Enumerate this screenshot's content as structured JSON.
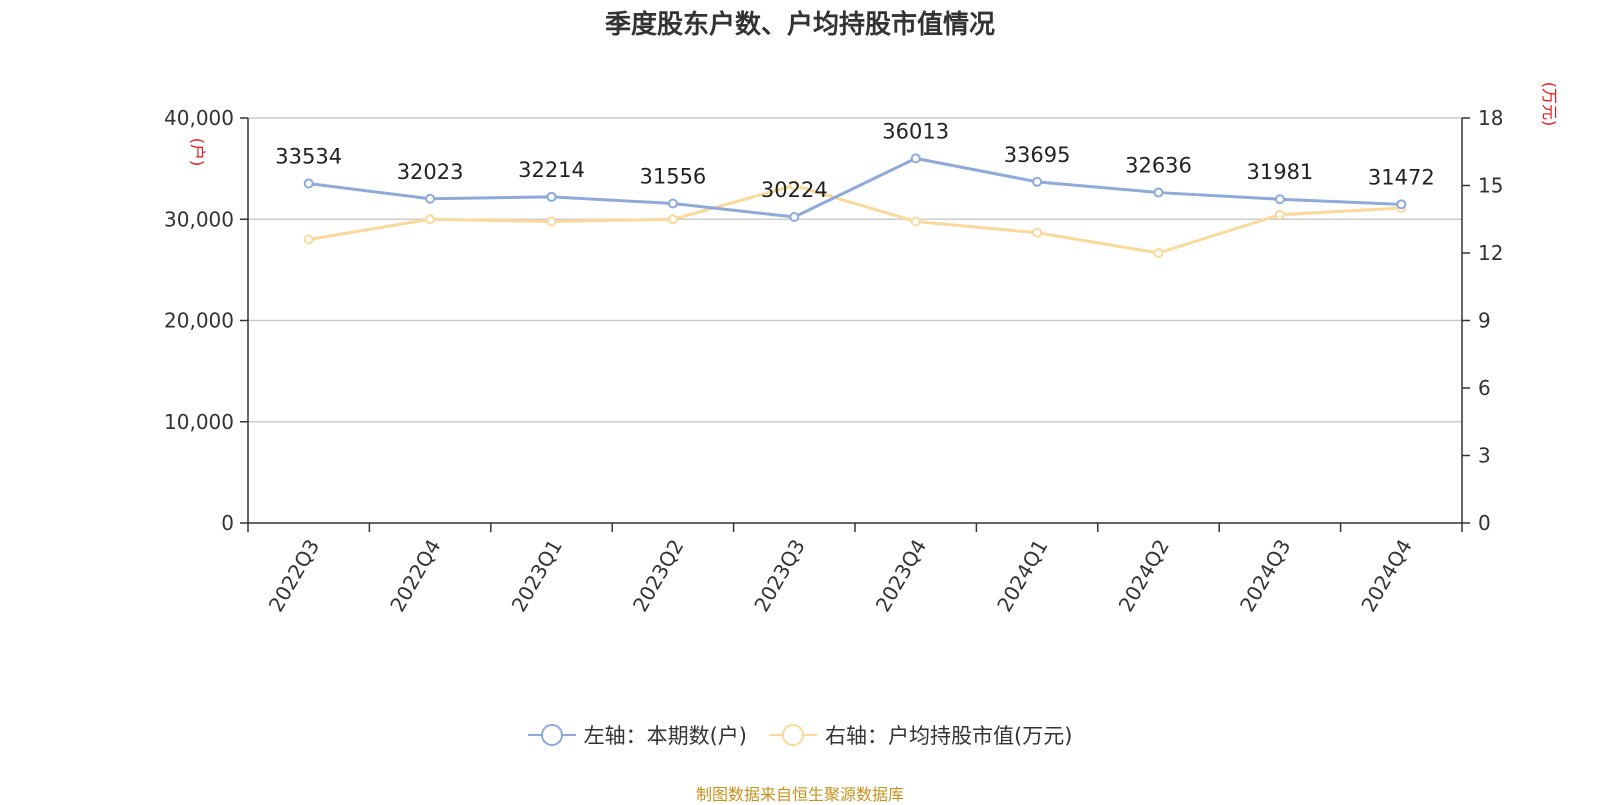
{
  "title": "季度股东户数、户均持股市值情况",
  "source": "制图数据来自恒生聚源数据库",
  "legend": [
    {
      "label": "左轴：本期数(户)",
      "color": "#8eaadb"
    },
    {
      "label": "右轴：户均持股市值(万元)",
      "color": "#fad99b"
    }
  ],
  "chart_data": {
    "type": "line",
    "categories": [
      "2022Q3",
      "2022Q4",
      "2023Q1",
      "2023Q2",
      "2023Q3",
      "2023Q4",
      "2024Q1",
      "2024Q2",
      "2024Q3",
      "2024Q4"
    ],
    "series": [
      {
        "name": "左轴：本期数(户)",
        "axis": "left",
        "color": "#8eaadb",
        "values": [
          33534,
          32023,
          32214,
          31556,
          30224,
          36013,
          33695,
          32636,
          31981,
          31472
        ],
        "show_labels": true
      },
      {
        "name": "右轴：户均持股市值(万元)",
        "axis": "right",
        "color": "#fad99b",
        "values": [
          12.6,
          13.5,
          13.4,
          13.5,
          15.0,
          13.4,
          12.9,
          12.0,
          13.7,
          14.0
        ],
        "show_labels": false
      }
    ],
    "y_left": {
      "unit": "(户)",
      "min": 0,
      "max": 40000,
      "ticks": [
        0,
        10000,
        20000,
        30000,
        40000
      ],
      "tick_labels": [
        "0",
        "10,000",
        "20,000",
        "30,000",
        "40,000"
      ]
    },
    "y_right": {
      "unit": "(万元)",
      "min": 0,
      "max": 18,
      "ticks": [
        0,
        3,
        6,
        9,
        12,
        15,
        18
      ],
      "tick_labels": [
        "0",
        "3",
        "6",
        "9",
        "12",
        "15",
        "18"
      ]
    },
    "grid": true,
    "legend_position": "bottom"
  }
}
